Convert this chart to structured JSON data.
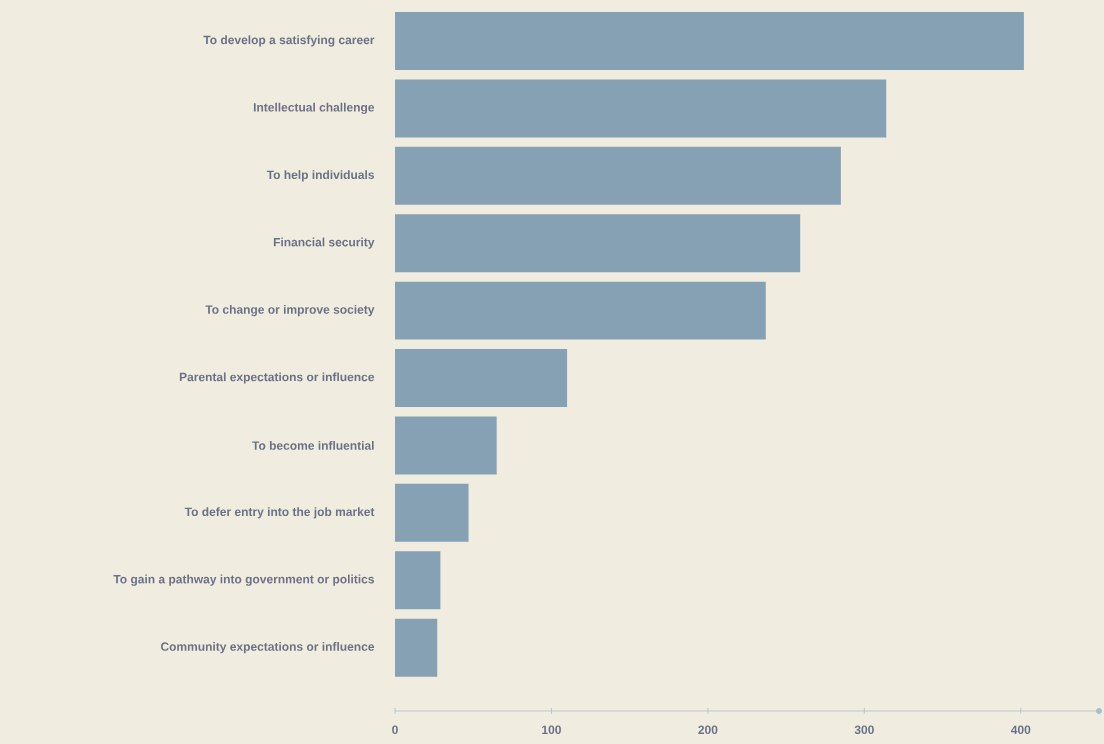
{
  "chart_data": {
    "type": "bar",
    "orientation": "horizontal",
    "categories": [
      "To develop a satisfying career",
      "Intellectual challenge",
      "To help individuals",
      "Financial security",
      "To change or improve society",
      "Parental expectations or influence",
      "To become influential",
      "To defer entry into the job market",
      "To gain a pathway into government or politics",
      "Community expectations or influence"
    ],
    "values": [
      402,
      314,
      285,
      259,
      237,
      110,
      65,
      47,
      29,
      27
    ],
    "color": "#87a1b4",
    "xlim": [
      0,
      450
    ],
    "xticks": [
      0,
      100,
      200,
      300,
      400
    ],
    "grid": false
  }
}
